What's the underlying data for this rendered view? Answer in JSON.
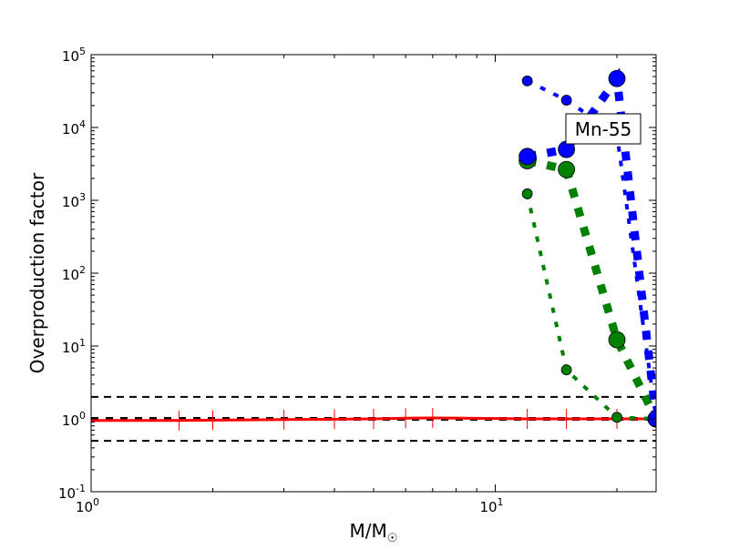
{
  "chart_data": {
    "type": "line",
    "title": "",
    "xlabel": "M/M☉",
    "xlabel_main": "M/M",
    "xlabel_sub": "☉",
    "ylabel": "Overproduction factor",
    "xscale": "log",
    "yscale": "log",
    "xlim": [
      1,
      25
    ],
    "ylim": [
      0.1,
      100000
    ],
    "x_ticks": [
      {
        "value": 1,
        "base": "10",
        "exp": "0"
      },
      {
        "value": 10,
        "base": "10",
        "exp": "1"
      }
    ],
    "y_ticks": [
      {
        "value": 0.1,
        "base": "10",
        "exp": "-1"
      },
      {
        "value": 1,
        "base": "10",
        "exp": "0"
      },
      {
        "value": 10,
        "base": "10",
        "exp": "1"
      },
      {
        "value": 100,
        "base": "10",
        "exp": "2"
      },
      {
        "value": 1000,
        "base": "10",
        "exp": "3"
      },
      {
        "value": 10000,
        "base": "10",
        "exp": "4"
      },
      {
        "value": 100000,
        "base": "10",
        "exp": "5"
      }
    ],
    "annotation": {
      "text": "Mn-55",
      "x": 19,
      "y": 9000
    },
    "reference_lines": [
      {
        "y": 2,
        "color": "#000000",
        "style": "dashed"
      },
      {
        "y": 1,
        "color": "#000000",
        "style": "dashed-thick"
      },
      {
        "y": 0.5,
        "color": "#000000",
        "style": "dashed"
      }
    ],
    "series": [
      {
        "name": "solar-reference",
        "color": "#ff0000",
        "style": "solid",
        "marker": "plus",
        "x": [
          1,
          1.65,
          2,
          3,
          4,
          5,
          6,
          7,
          12,
          15,
          20,
          25
        ],
        "y": [
          0.95,
          0.95,
          0.96,
          0.98,
          0.99,
          1.0,
          1.02,
          1.03,
          1.0,
          1.0,
          1.0,
          1.0
        ]
      },
      {
        "name": "blue-thin",
        "color": "#0000ff",
        "style": "dotted-thin",
        "marker": "small-circle",
        "x": [
          12,
          15,
          20,
          25
        ],
        "y": [
          43600,
          23700,
          8000,
          1.0
        ]
      },
      {
        "name": "blue-thick",
        "color": "#0000ff",
        "style": "dotted-thick",
        "marker": "large-circle",
        "x": [
          12,
          15,
          20,
          25
        ],
        "y": [
          4000,
          5000,
          47000,
          1.0
        ]
      },
      {
        "name": "green-thick",
        "color": "#008000",
        "style": "dotted-thick",
        "marker": "large-circle",
        "x": [
          12,
          15,
          20,
          25
        ],
        "y": [
          3500,
          2650,
          12.2,
          1.0
        ]
      },
      {
        "name": "green-thin",
        "color": "#008000",
        "style": "dotted-thin",
        "marker": "small-circle",
        "x": [
          12,
          15,
          20,
          25
        ],
        "y": [
          1230,
          4.7,
          1.05,
          1.0
        ]
      }
    ]
  }
}
